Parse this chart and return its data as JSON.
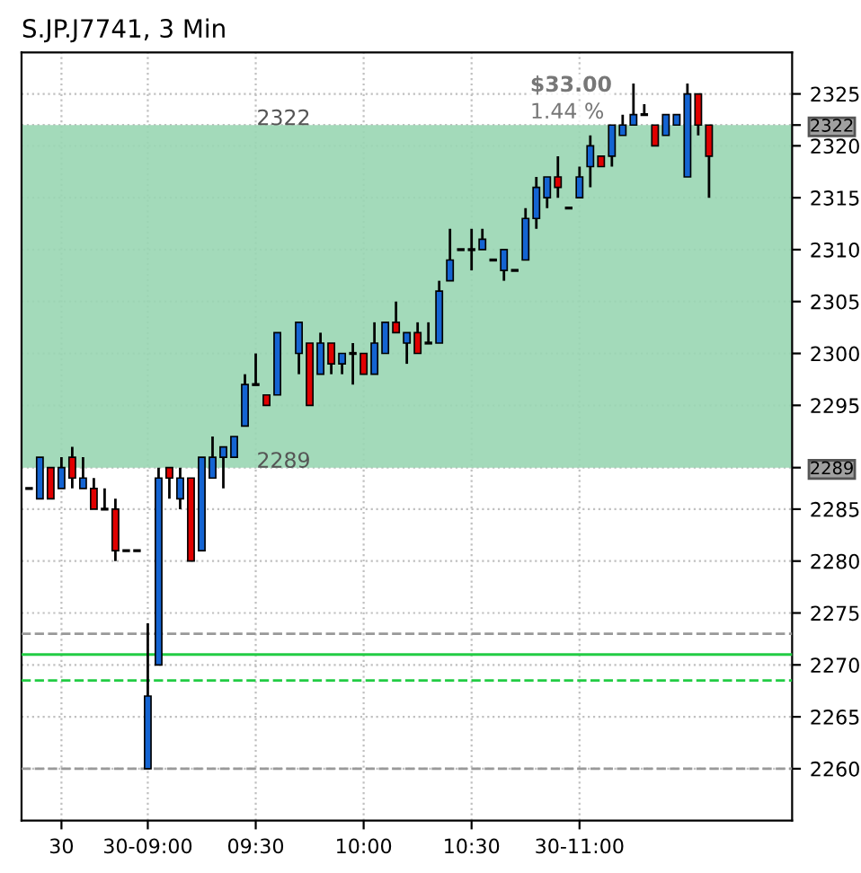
{
  "chart_data": {
    "type": "candlestick",
    "title": "S.JP.J7741, 3 Min",
    "categories": [
      null,
      null,
      null,
      "30",
      null,
      null,
      null,
      null,
      null,
      null,
      null,
      "30-09:00",
      null,
      null,
      null,
      null,
      null,
      null,
      null,
      null,
      null,
      "09:30",
      null,
      null,
      null,
      null,
      null,
      null,
      null,
      null,
      null,
      "10:00",
      null,
      null,
      null,
      null,
      null,
      null,
      null,
      null,
      null,
      "10:30",
      null,
      null,
      null,
      null,
      null,
      null,
      null,
      null,
      null,
      "30-11:00",
      null,
      null,
      null,
      null,
      null,
      null,
      null,
      null,
      null,
      null,
      null,
      null,
      null,
      null,
      null,
      null,
      null,
      null,
      null
    ],
    "ohlc": [
      [
        2287,
        2287,
        2287,
        2287
      ],
      [
        2286,
        2290,
        2286,
        2290
      ],
      [
        2289,
        2289,
        2286,
        2286
      ],
      [
        2287,
        2290,
        2287,
        2289
      ],
      [
        2290,
        2291,
        2287,
        2288
      ],
      [
        2287,
        2290,
        2287,
        2288
      ],
      [
        2287,
        2288,
        2285,
        2285
      ],
      [
        2285,
        2287,
        2285,
        2285
      ],
      [
        2285,
        2286,
        2280,
        2281
      ],
      [
        2281,
        2281,
        2281,
        2281
      ],
      [
        2281,
        2281,
        2281,
        2281
      ],
      [
        2260,
        2274,
        2260,
        2267
      ],
      [
        2270,
        2289,
        2270,
        2288
      ],
      [
        2289,
        2289,
        2286,
        2288
      ],
      [
        2286,
        2289,
        2285,
        2288
      ],
      [
        2288,
        2288,
        2280,
        2280
      ],
      [
        2281,
        2290,
        2281,
        2290
      ],
      [
        2288,
        2292,
        2288,
        2290
      ],
      [
        2290,
        2291,
        2287,
        2291
      ],
      [
        2290,
        2292,
        2290,
        2292
      ],
      [
        2293,
        2298,
        2293,
        2297
      ],
      [
        2297,
        2300,
        2297,
        2297
      ],
      [
        2296,
        2296,
        2295,
        2295
      ],
      [
        2296,
        2302,
        2296,
        2302
      ],
      null,
      [
        2300,
        2303,
        2298,
        2303
      ],
      [
        2301,
        2301,
        2295,
        2295
      ],
      [
        2298,
        2302,
        2298,
        2301
      ],
      [
        2301,
        2301,
        2298,
        2299
      ],
      [
        2299,
        2300,
        2298,
        2300
      ],
      [
        2300,
        2301,
        2297,
        2300
      ],
      [
        2300,
        2300,
        2298,
        2298
      ],
      [
        2298,
        2303,
        2298,
        2301
      ],
      [
        2300,
        2303,
        2300,
        2303
      ],
      [
        2303,
        2305,
        2302,
        2302
      ],
      [
        2301,
        2302,
        2299,
        2302
      ],
      [
        2302,
        2303,
        2300,
        2300
      ],
      [
        2301,
        2303,
        2301,
        2301
      ],
      [
        2301,
        2307,
        2301,
        2306
      ],
      [
        2307,
        2312,
        2307,
        2309
      ],
      [
        2310,
        2310,
        2310,
        2310
      ],
      [
        2310,
        2312,
        2308,
        2310
      ],
      [
        2310,
        2312,
        2310,
        2311
      ],
      [
        2309,
        2309,
        2309,
        2309
      ],
      [
        2308,
        2310,
        2307,
        2310
      ],
      [
        2308,
        2308,
        2308,
        2308
      ],
      [
        2309,
        2314,
        2309,
        2313
      ],
      [
        2313,
        2317,
        2312,
        2316
      ],
      [
        2315,
        2317,
        2314,
        2317
      ],
      [
        2317,
        2319,
        2315,
        2316
      ],
      [
        2314,
        2314,
        2314,
        2314
      ],
      [
        2315,
        2318,
        2315,
        2317
      ],
      [
        2318,
        2321,
        2316,
        2320
      ],
      [
        2319,
        2319,
        2318,
        2318
      ],
      [
        2319,
        2322,
        2318,
        2322
      ],
      [
        2321,
        2323,
        2321,
        2322
      ],
      [
        2322,
        2326,
        2322,
        2323
      ],
      [
        2323,
        2324,
        2323,
        2323
      ],
      [
        2322,
        2322,
        2320,
        2320
      ],
      [
        2321,
        2323,
        2321,
        2323
      ],
      [
        2322,
        2323,
        2322,
        2323
      ],
      [
        2317,
        2326,
        2317,
        2325
      ],
      [
        2325,
        2325,
        2321,
        2322
      ],
      [
        2322,
        2322,
        2315,
        2319
      ],
      null,
      null,
      null,
      null,
      null,
      null,
      null
    ],
    "colors": [
      "#000000",
      "#1464d2",
      "#e00000",
      "#1464d2",
      "#e00000",
      "#1464d2",
      "#e00000",
      "#000000",
      "#e00000",
      "#000000",
      "#000000",
      "#1464d2",
      "#1464d2",
      "#e00000",
      "#1464d2",
      "#e00000",
      "#1464d2",
      "#1464d2",
      "#1464d2",
      "#1464d2",
      "#1464d2",
      "#000000",
      "#e00000",
      "#1464d2",
      null,
      "#1464d2",
      "#e00000",
      "#1464d2",
      "#e00000",
      "#1464d2",
      "#000000",
      "#e00000",
      "#1464d2",
      "#1464d2",
      "#e00000",
      "#1464d2",
      "#e00000",
      "#000000",
      "#1464d2",
      "#1464d2",
      "#000000",
      "#000000",
      "#1464d2",
      "#000000",
      "#1464d2",
      "#000000",
      "#1464d2",
      "#1464d2",
      "#1464d2",
      "#e00000",
      "#000000",
      "#1464d2",
      "#1464d2",
      "#e00000",
      "#1464d2",
      "#1464d2",
      "#1464d2",
      "#000000",
      "#e00000",
      "#1464d2",
      "#1464d2",
      "#1464d2",
      "#e00000",
      "#e00000",
      null,
      null,
      null,
      null,
      null,
      null,
      null
    ],
    "ylim": [
      2255,
      2329
    ],
    "yticks": [
      2260,
      2265,
      2270,
      2275,
      2280,
      2285,
      {
        "value": 2289,
        "label": "2289"
      },
      2295,
      2300,
      2305,
      2310,
      2315,
      2320,
      {
        "value": 2322,
        "label": "2322"
      },
      2325
    ],
    "grid": true,
    "bands": [
      {
        "axis": "y",
        "from": 2289,
        "to": 2322,
        "color": "#99d6b3"
      }
    ],
    "ref_lines": [
      {
        "axis": "y",
        "value": 2273,
        "color": "#999999",
        "line_style": "dashed"
      },
      {
        "axis": "y",
        "value": 2271,
        "color": "#22cc44",
        "line_style": "solid"
      },
      {
        "axis": "y",
        "value": 2268.5,
        "color": "#22cc44",
        "line_style": "dashed"
      },
      {
        "axis": "y",
        "value": 2260,
        "color": "#999999",
        "line_style": "dashed"
      }
    ],
    "annotations": [
      {
        "text": "2322",
        "y": 2322
      },
      {
        "text": "2289",
        "y": 2289
      },
      "$33.00",
      "1.44 %"
    ]
  }
}
